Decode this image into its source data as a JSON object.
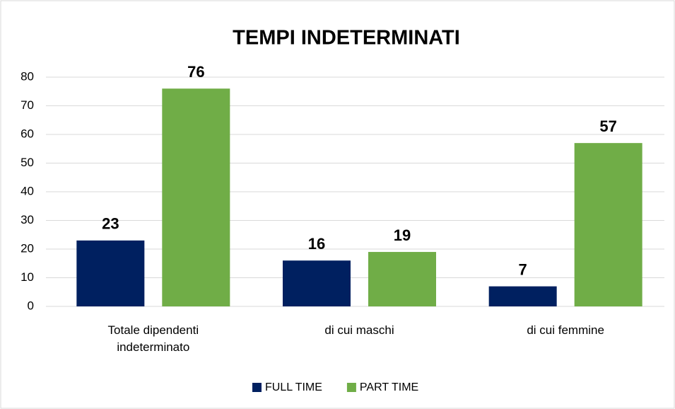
{
  "chart_data": {
    "type": "bar",
    "title": "TEMPI INDETERMINATI",
    "categories": [
      "Totale dipendenti indeterminato",
      "di cui maschi",
      "di cui femmine"
    ],
    "series": [
      {
        "name": "FULL TIME",
        "color": "#002060",
        "values": [
          23,
          16,
          7
        ]
      },
      {
        "name": "PART TIME",
        "color": "#70ad47",
        "values": [
          76,
          19,
          57
        ]
      }
    ],
    "ylim": [
      0,
      80
    ],
    "yticks": [
      0,
      10,
      20,
      30,
      40,
      50,
      60,
      70,
      80
    ],
    "grid": true,
    "legend": "bottom"
  }
}
